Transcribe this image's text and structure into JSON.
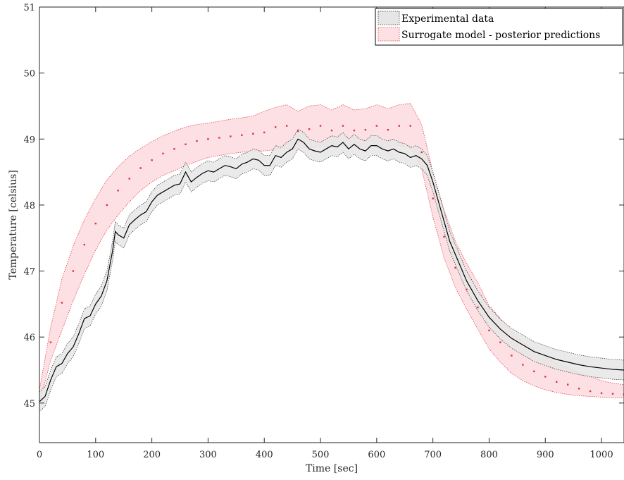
{
  "chart_data": {
    "type": "line",
    "title": "",
    "xlabel": "Time [sec]",
    "ylabel": "Temperature [celsius]",
    "xlim": [
      0,
      1040
    ],
    "ylim": [
      44.4,
      51
    ],
    "x_ticks": [
      0,
      100,
      200,
      300,
      400,
      500,
      600,
      700,
      800,
      900,
      1000
    ],
    "y_ticks": [
      45,
      46,
      47,
      48,
      49,
      50,
      51
    ],
    "grid": false,
    "legend_position": "top-right",
    "legend": [
      {
        "label": "Experimental data",
        "fill": "#e6e6e6",
        "stroke": "#333333"
      },
      {
        "label": "Surrogate model - posterior predictions",
        "fill": "#fde0e3",
        "stroke": "#e0303a"
      }
    ],
    "series": [
      {
        "name": "Experimental data",
        "style": "band-with-mean-line",
        "color": "#000000",
        "band_fill": "#e6e6e6",
        "band_halfwidth": 0.15,
        "x": [
          0,
          10,
          20,
          30,
          40,
          50,
          60,
          70,
          80,
          90,
          100,
          110,
          120,
          130,
          135,
          140,
          150,
          160,
          170,
          180,
          190,
          200,
          210,
          220,
          230,
          240,
          250,
          260,
          270,
          280,
          290,
          300,
          310,
          320,
          330,
          340,
          350,
          360,
          370,
          380,
          390,
          400,
          410,
          420,
          430,
          440,
          450,
          460,
          470,
          480,
          490,
          500,
          510,
          520,
          530,
          540,
          550,
          560,
          570,
          580,
          590,
          600,
          610,
          620,
          630,
          640,
          650,
          660,
          670,
          680,
          690,
          700,
          710,
          720,
          730,
          740,
          750,
          760,
          780,
          800,
          820,
          840,
          860,
          880,
          900,
          920,
          940,
          960,
          980,
          1000,
          1020,
          1040
        ],
        "y": [
          45.02,
          45.1,
          45.35,
          45.55,
          45.6,
          45.75,
          45.85,
          46.05,
          46.28,
          46.32,
          46.5,
          46.62,
          46.85,
          47.3,
          47.6,
          47.55,
          47.5,
          47.7,
          47.78,
          47.85,
          47.9,
          48.05,
          48.15,
          48.2,
          48.25,
          48.3,
          48.32,
          48.5,
          48.35,
          48.42,
          48.48,
          48.52,
          48.5,
          48.55,
          48.6,
          48.58,
          48.55,
          48.62,
          48.65,
          48.7,
          48.68,
          48.6,
          48.6,
          48.75,
          48.72,
          48.8,
          48.85,
          49.0,
          48.95,
          48.85,
          48.82,
          48.8,
          48.85,
          48.9,
          48.88,
          48.95,
          48.85,
          48.92,
          48.85,
          48.82,
          48.9,
          48.9,
          48.85,
          48.82,
          48.85,
          48.8,
          48.78,
          48.72,
          48.75,
          48.7,
          48.6,
          48.35,
          48.05,
          47.75,
          47.45,
          47.25,
          47.05,
          46.85,
          46.55,
          46.3,
          46.12,
          45.98,
          45.88,
          45.78,
          45.72,
          45.66,
          45.62,
          45.58,
          45.55,
          45.53,
          45.51,
          45.5
        ]
      },
      {
        "name": "Surrogate model - posterior predictions",
        "style": "band-with-dots",
        "color": "#e0303a",
        "band_fill": "#fde0e3",
        "x": [
          0,
          20,
          40,
          60,
          80,
          100,
          120,
          140,
          160,
          180,
          200,
          220,
          240,
          260,
          280,
          300,
          320,
          340,
          360,
          380,
          400,
          420,
          440,
          460,
          480,
          500,
          520,
          540,
          560,
          580,
          600,
          620,
          640,
          660,
          680,
          700,
          720,
          740,
          760,
          780,
          800,
          820,
          840,
          860,
          880,
          900,
          920,
          940,
          960,
          980,
          1000,
          1020,
          1040
        ],
        "y": [
          45.1,
          45.92,
          46.52,
          47.0,
          47.4,
          47.72,
          48.0,
          48.22,
          48.4,
          48.56,
          48.68,
          48.78,
          48.85,
          48.92,
          48.97,
          49.0,
          49.02,
          49.04,
          49.06,
          49.08,
          49.1,
          49.18,
          49.2,
          49.12,
          49.15,
          49.2,
          49.13,
          49.2,
          49.13,
          49.14,
          49.2,
          49.14,
          49.2,
          49.2,
          48.8,
          48.1,
          47.52,
          47.05,
          46.72,
          46.45,
          46.1,
          45.92,
          45.72,
          45.58,
          45.48,
          45.4,
          45.32,
          45.28,
          45.22,
          45.18,
          45.15,
          45.14,
          45.13
        ],
        "upper": [
          45.2,
          46.15,
          46.88,
          47.38,
          47.78,
          48.1,
          48.38,
          48.58,
          48.74,
          48.86,
          48.96,
          49.05,
          49.12,
          49.18,
          49.22,
          49.24,
          49.27,
          49.3,
          49.32,
          49.35,
          49.42,
          49.48,
          49.52,
          49.42,
          49.5,
          49.52,
          49.44,
          49.52,
          49.44,
          49.46,
          49.52,
          49.46,
          49.52,
          49.54,
          49.22,
          48.5,
          47.92,
          47.45,
          47.12,
          46.82,
          46.48,
          46.28,
          46.08,
          45.92,
          45.8,
          45.7,
          45.6,
          45.54,
          45.46,
          45.4,
          45.34,
          45.3,
          45.28
        ],
        "lower": [
          45.0,
          45.65,
          46.1,
          46.55,
          46.95,
          47.32,
          47.62,
          47.85,
          48.05,
          48.22,
          48.35,
          48.45,
          48.52,
          48.6,
          48.66,
          48.72,
          48.75,
          48.78,
          48.8,
          48.82,
          48.82,
          48.84,
          48.86,
          48.86,
          48.87,
          48.88,
          48.88,
          48.9,
          48.88,
          48.88,
          48.9,
          48.88,
          48.9,
          48.88,
          48.55,
          47.82,
          47.2,
          46.75,
          46.42,
          46.12,
          45.82,
          45.62,
          45.45,
          45.34,
          45.26,
          45.2,
          45.16,
          45.13,
          45.11,
          45.1,
          45.09,
          45.08,
          45.08
        ]
      }
    ]
  }
}
